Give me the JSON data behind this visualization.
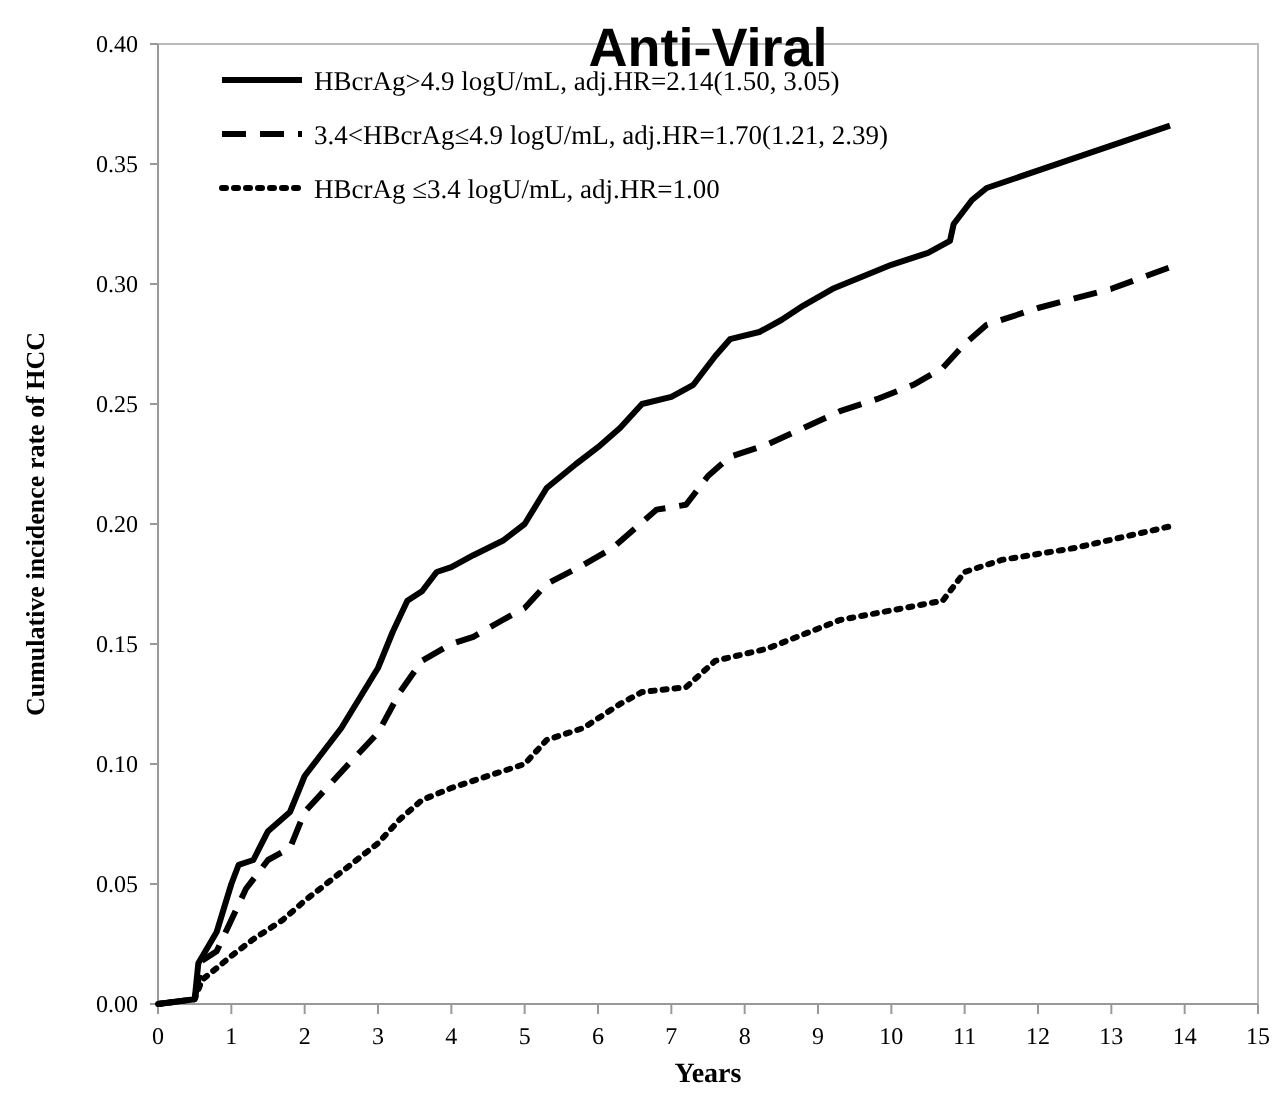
{
  "chart_data": {
    "type": "line",
    "title": "Anti-Viral",
    "xlabel": "Years",
    "ylabel": "Cumulative incidence rate of HCC",
    "xlim": [
      0,
      15
    ],
    "xticks": [
      0,
      1,
      2,
      3,
      4,
      5,
      6,
      7,
      8,
      9,
      10,
      11,
      12,
      13,
      14,
      15
    ],
    "ylim": [
      0,
      0.4
    ],
    "yticks": [
      {
        "value": 0,
        "label": "0.00"
      },
      {
        "value": 0.05,
        "label": "0.05"
      },
      {
        "value": 0.1,
        "label": "0.10"
      },
      {
        "value": 0.15,
        "label": "0.15"
      },
      {
        "value": 0.2,
        "label": "0.20"
      },
      {
        "value": 0.25,
        "label": "0.25"
      },
      {
        "value": 0.3,
        "label": "0.30"
      },
      {
        "value": 0.35,
        "label": "0.35"
      },
      {
        "value": 0.4,
        "label": "0.40"
      }
    ],
    "grid": false,
    "legend": "top left",
    "marker": "none",
    "series": [
      {
        "name": "HBcrAg>4.9  logU/mL, adj.HR=2.14(1.50, 3.05)",
        "color": "#000000",
        "line_style": "solid",
        "x": [
          0,
          0.5,
          0.55,
          0.8,
          1.0,
          1.1,
          1.3,
          1.5,
          1.8,
          2.0,
          2.2,
          2.5,
          2.8,
          3.0,
          3.2,
          3.4,
          3.6,
          3.8,
          4.0,
          4.3,
          4.7,
          5.0,
          5.3,
          5.7,
          6.0,
          6.3,
          6.6,
          7.0,
          7.3,
          7.6,
          7.8,
          8.2,
          8.5,
          8.8,
          9.2,
          9.6,
          10.0,
          10.5,
          10.8,
          10.85,
          11.1,
          11.3,
          13.8
        ],
        "values": [
          0,
          0.002,
          0.017,
          0.03,
          0.05,
          0.058,
          0.06,
          0.072,
          0.08,
          0.095,
          0.103,
          0.115,
          0.13,
          0.14,
          0.155,
          0.168,
          0.172,
          0.18,
          0.182,
          0.187,
          0.193,
          0.2,
          0.215,
          0.225,
          0.232,
          0.24,
          0.25,
          0.253,
          0.258,
          0.27,
          0.277,
          0.28,
          0.285,
          0.291,
          0.298,
          0.303,
          0.308,
          0.313,
          0.318,
          0.325,
          0.335,
          0.34,
          0.366
        ]
      },
      {
        "name": "3.4<HBcrAg≤4.9 logU/mL, adj.HR=1.70(1.21, 2.39)",
        "color": "#000000",
        "line_style": "dashed",
        "x": [
          0,
          0.5,
          0.6,
          0.8,
          1.0,
          1.2,
          1.5,
          1.8,
          2.0,
          2.3,
          2.6,
          3.0,
          3.3,
          3.6,
          4.0,
          4.3,
          4.7,
          5.0,
          5.3,
          5.8,
          6.2,
          6.5,
          6.8,
          7.2,
          7.5,
          7.8,
          8.3,
          8.8,
          9.3,
          9.8,
          10.3,
          10.7,
          11.0,
          11.3,
          12.0,
          13.0,
          13.8
        ],
        "values": [
          0,
          0.002,
          0.018,
          0.022,
          0.035,
          0.048,
          0.06,
          0.065,
          0.08,
          0.09,
          0.1,
          0.113,
          0.13,
          0.143,
          0.15,
          0.153,
          0.16,
          0.165,
          0.175,
          0.183,
          0.19,
          0.198,
          0.206,
          0.208,
          0.22,
          0.228,
          0.233,
          0.24,
          0.247,
          0.252,
          0.258,
          0.265,
          0.275,
          0.283,
          0.29,
          0.298,
          0.307
        ]
      },
      {
        "name": "HBcrAg ≤3.4 logU/mL, adj.HR=1.00",
        "color": "#000000",
        "line_style": "dotted",
        "x": [
          0,
          0.5,
          0.6,
          1.0,
          1.3,
          1.7,
          2.0,
          2.5,
          3.0,
          3.3,
          3.6,
          4.0,
          4.5,
          5.0,
          5.3,
          5.8,
          6.3,
          6.6,
          7.2,
          7.6,
          8.3,
          8.8,
          9.3,
          10.0,
          10.7,
          11.0,
          11.5,
          12.5,
          13.8
        ],
        "values": [
          0,
          0.002,
          0.01,
          0.02,
          0.027,
          0.035,
          0.043,
          0.055,
          0.067,
          0.077,
          0.085,
          0.09,
          0.095,
          0.1,
          0.11,
          0.115,
          0.125,
          0.13,
          0.132,
          0.143,
          0.148,
          0.154,
          0.16,
          0.164,
          0.168,
          0.18,
          0.185,
          0.19,
          0.199
        ]
      }
    ]
  }
}
